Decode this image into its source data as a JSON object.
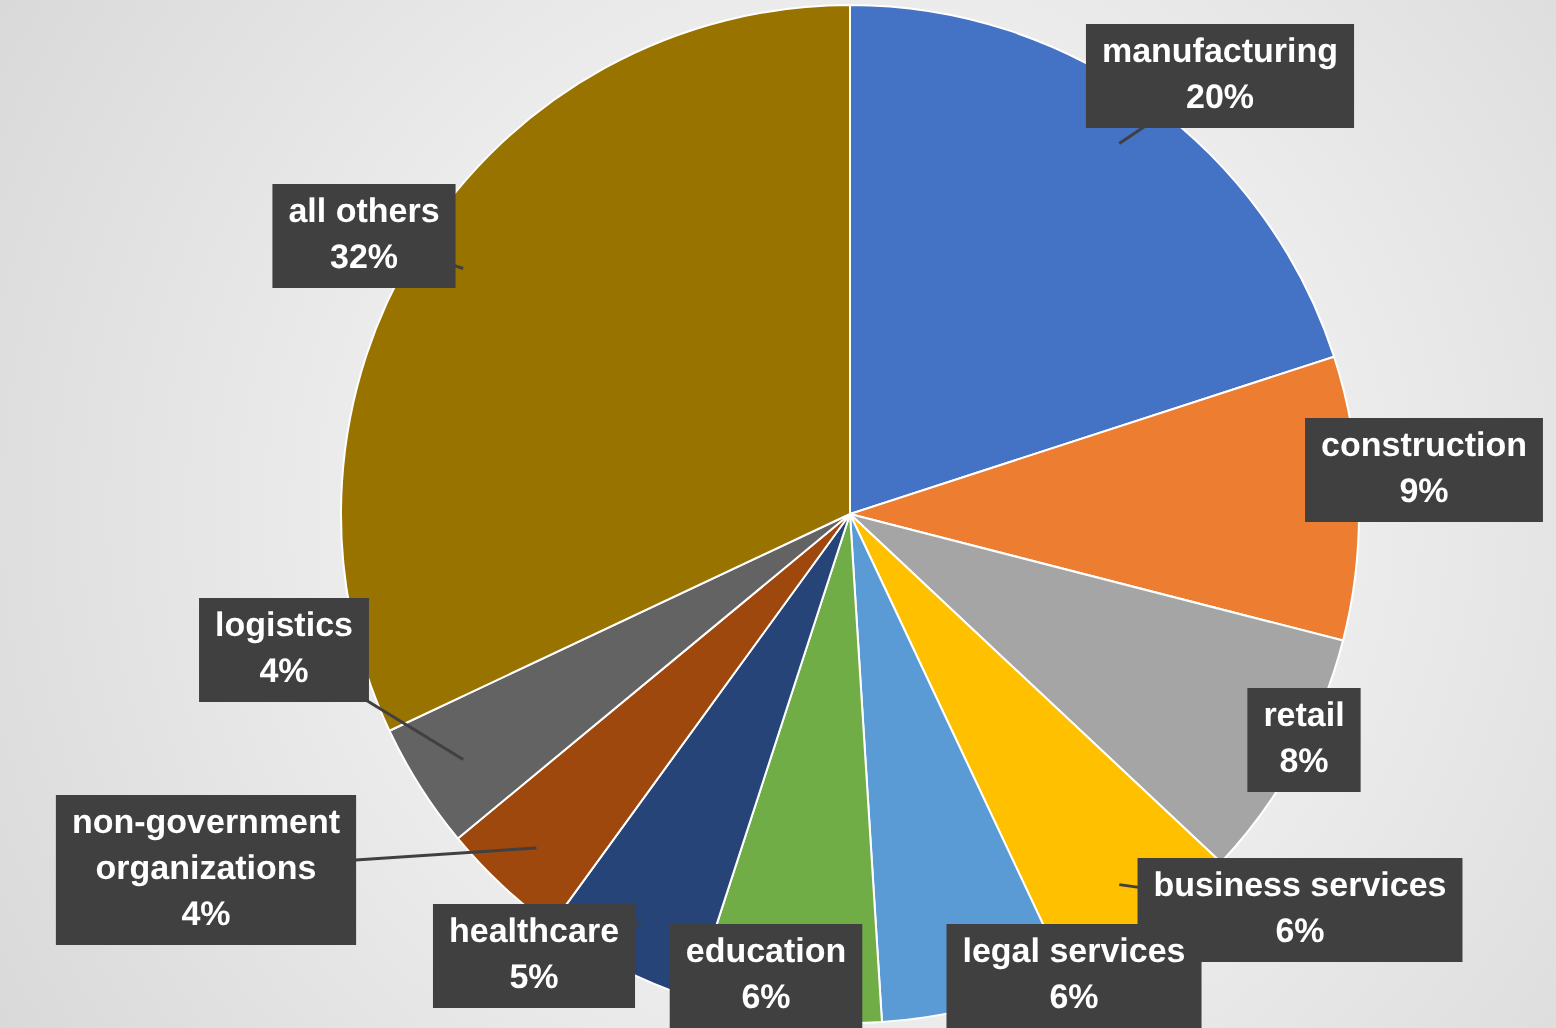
{
  "chart_data": {
    "type": "pie",
    "categories": [
      "manufacturing",
      "construction",
      "retail",
      "business services",
      "legal services",
      "education",
      "healthcare",
      "non-government organizations",
      "logistics",
      "all others"
    ],
    "values": [
      20,
      9,
      8,
      6,
      6,
      6,
      5,
      4,
      4,
      32
    ],
    "value_labels": [
      "20%",
      "9%",
      "8%",
      "6%",
      "6%",
      "6%",
      "5%",
      "4%",
      "4%",
      "32%"
    ],
    "colors": [
      "#4472c4",
      "#ed7d31",
      "#a5a5a5",
      "#ffc000",
      "#5b9bd5",
      "#70ad47",
      "#264478",
      "#9e480e",
      "#636363",
      "#997300"
    ],
    "legend": false
  }
}
